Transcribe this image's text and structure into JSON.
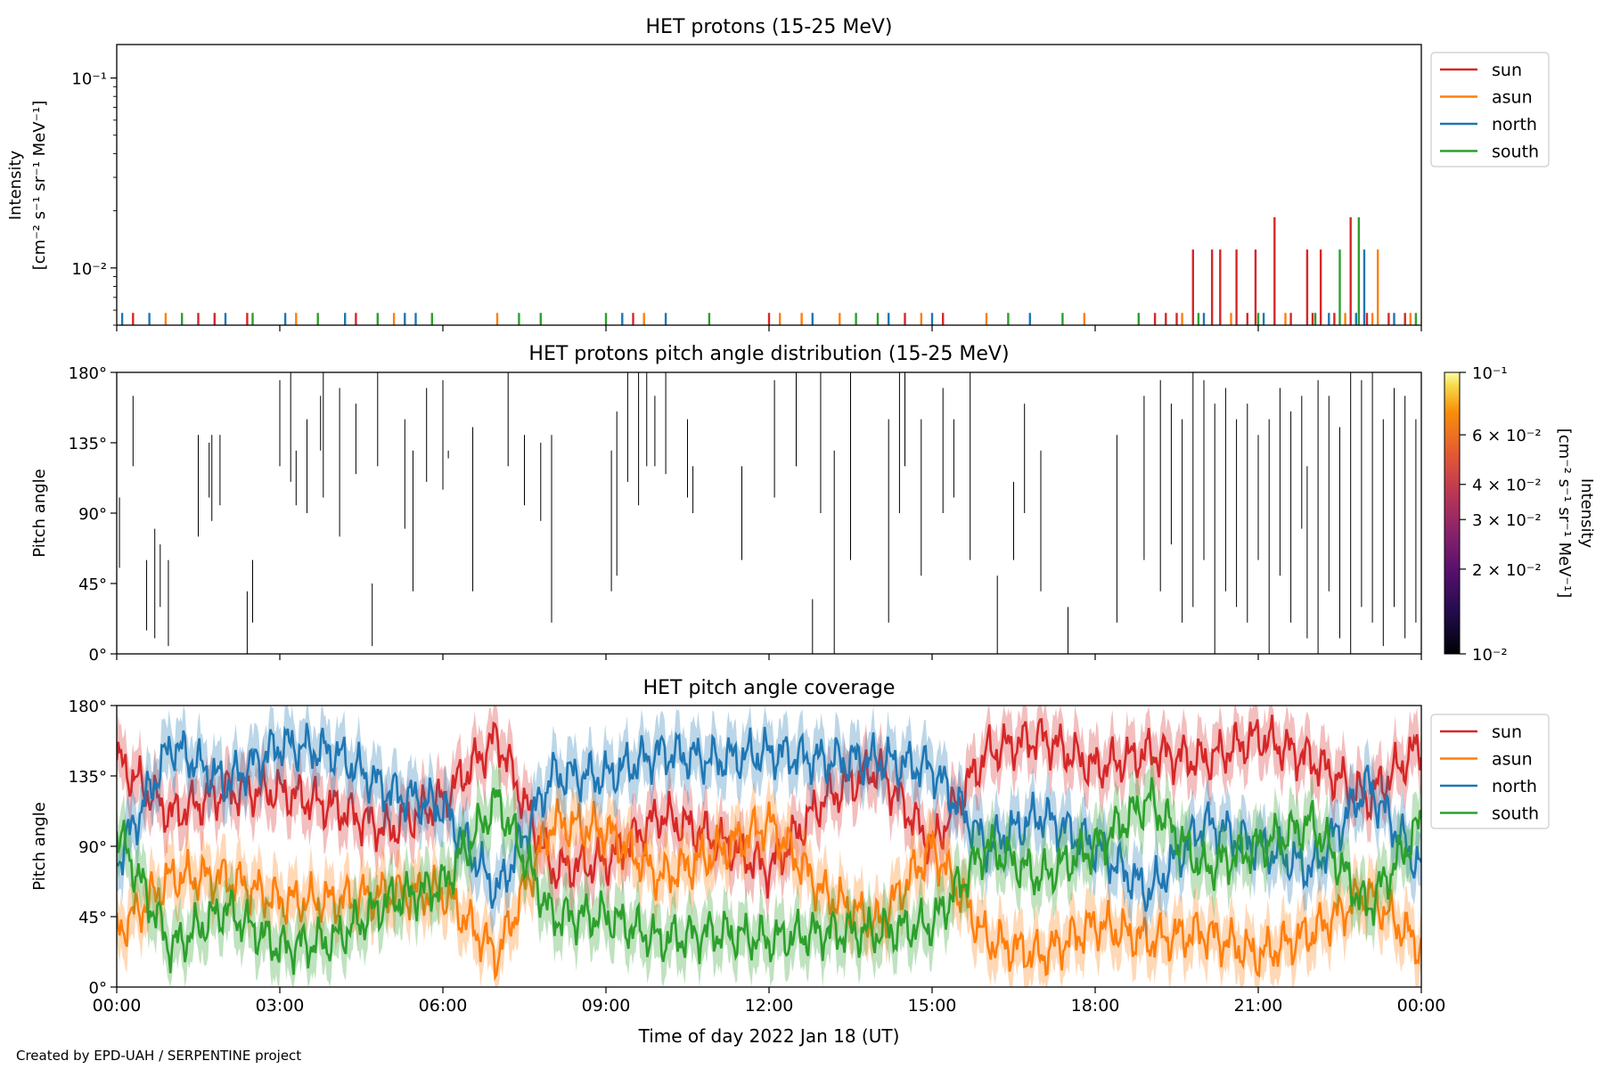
{
  "credit": "Created by EPD-UAH / SERPENTINE project",
  "xaxis": {
    "label": "Time of day 2022 Jan 18 (UT)",
    "ticks": [
      "00:00",
      "03:00",
      "06:00",
      "09:00",
      "12:00",
      "15:00",
      "18:00",
      "21:00",
      "00:00"
    ],
    "range_hours": [
      0,
      24
    ]
  },
  "colors": {
    "sun": "#d62728",
    "asun": "#ff7f0e",
    "north": "#1f77b4",
    "south": "#2ca02c"
  },
  "chart_data": [
    {
      "type": "line",
      "title": "HET protons (15-25 MeV)",
      "ylabel_line1": "Intensity",
      "ylabel_line2": "[cm⁻² s⁻¹ sr⁻¹ MeV⁻¹]",
      "yscale": "log",
      "ylim": [
        0.005,
        0.15
      ],
      "yticks": [
        {
          "value": 0.1,
          "label": "10⁻¹"
        },
        {
          "value": 0.01,
          "label": "10⁻²"
        }
      ],
      "baseline": 0.005,
      "legend": {
        "placement": "outside-right",
        "entries": [
          "sun",
          "asun",
          "north",
          "south"
        ]
      },
      "series": [
        {
          "name": "sun",
          "spikes": [
            [
              0.3,
              0.0058
            ],
            [
              1.5,
              0.0058
            ],
            [
              1.8,
              0.0058
            ],
            [
              2.4,
              0.0058
            ],
            [
              4.4,
              0.0058
            ],
            [
              9.5,
              0.0058
            ],
            [
              12.0,
              0.0058
            ],
            [
              14.5,
              0.0058
            ],
            [
              15.2,
              0.0058
            ],
            [
              19.1,
              0.0058
            ],
            [
              19.3,
              0.0058
            ],
            [
              19.5,
              0.0058
            ],
            [
              19.8,
              0.0125
            ],
            [
              20.15,
              0.0125
            ],
            [
              20.3,
              0.0125
            ],
            [
              20.6,
              0.0125
            ],
            [
              20.8,
              0.0058
            ],
            [
              20.95,
              0.0125
            ],
            [
              21.3,
              0.0185
            ],
            [
              21.6,
              0.0058
            ],
            [
              21.9,
              0.0125
            ],
            [
              22.0,
              0.0058
            ],
            [
              22.15,
              0.0125
            ],
            [
              22.4,
              0.0058
            ],
            [
              22.7,
              0.0185
            ],
            [
              23.0,
              0.0058
            ],
            [
              23.4,
              0.0058
            ],
            [
              23.7,
              0.0058
            ]
          ]
        },
        {
          "name": "asun",
          "spikes": [
            [
              0.9,
              0.0058
            ],
            [
              3.3,
              0.0058
            ],
            [
              5.1,
              0.0058
            ],
            [
              7.0,
              0.0058
            ],
            [
              9.7,
              0.0058
            ],
            [
              12.2,
              0.0058
            ],
            [
              12.6,
              0.0058
            ],
            [
              13.3,
              0.0058
            ],
            [
              14.8,
              0.0058
            ],
            [
              16.0,
              0.0058
            ],
            [
              17.8,
              0.0058
            ],
            [
              19.6,
              0.0058
            ],
            [
              20.5,
              0.0058
            ],
            [
              21.5,
              0.0058
            ],
            [
              22.6,
              0.0058
            ],
            [
              23.1,
              0.0058
            ],
            [
              23.2,
              0.0125
            ],
            [
              23.8,
              0.0058
            ]
          ]
        },
        {
          "name": "north",
          "spikes": [
            [
              0.1,
              0.0058
            ],
            [
              0.6,
              0.0058
            ],
            [
              2.0,
              0.0058
            ],
            [
              3.1,
              0.0058
            ],
            [
              4.2,
              0.0058
            ],
            [
              5.3,
              0.0058
            ],
            [
              5.5,
              0.0058
            ],
            [
              9.3,
              0.0058
            ],
            [
              10.1,
              0.0058
            ],
            [
              12.8,
              0.0058
            ],
            [
              14.2,
              0.0058
            ],
            [
              15.0,
              0.0058
            ],
            [
              16.8,
              0.0058
            ],
            [
              20.0,
              0.0058
            ],
            [
              21.1,
              0.0058
            ],
            [
              22.3,
              0.0058
            ],
            [
              22.8,
              0.0058
            ],
            [
              22.95,
              0.0125
            ],
            [
              23.5,
              0.0058
            ]
          ]
        },
        {
          "name": "south",
          "spikes": [
            [
              1.2,
              0.0058
            ],
            [
              2.5,
              0.0058
            ],
            [
              3.7,
              0.0058
            ],
            [
              4.8,
              0.0058
            ],
            [
              5.8,
              0.0058
            ],
            [
              7.4,
              0.0058
            ],
            [
              7.8,
              0.0058
            ],
            [
              9.0,
              0.0058
            ],
            [
              10.9,
              0.0058
            ],
            [
              13.6,
              0.0058
            ],
            [
              14.0,
              0.0058
            ],
            [
              16.4,
              0.0058
            ],
            [
              17.4,
              0.0058
            ],
            [
              18.8,
              0.0058
            ],
            [
              19.9,
              0.0058
            ],
            [
              21.0,
              0.0058
            ],
            [
              22.05,
              0.0058
            ],
            [
              22.5,
              0.0125
            ],
            [
              22.85,
              0.0185
            ],
            [
              23.9,
              0.0058
            ]
          ]
        }
      ]
    },
    {
      "type": "heatmap",
      "title": "HET protons pitch angle distribution (15-25 MeV)",
      "ylabel": "Pitch angle",
      "ylim": [
        0,
        180
      ],
      "yticks": [
        "0°",
        "45°",
        "90°",
        "135°",
        "180°"
      ],
      "colorbar": {
        "label_line1": "Intensity",
        "label_line2": "[cm⁻² s⁻¹ sr⁻¹ MeV⁻¹]",
        "scale": "log",
        "range": [
          0.01,
          0.1
        ],
        "ticks": [
          {
            "value": 0.1,
            "label": "10⁻¹"
          },
          {
            "value": 0.06,
            "label": "6 × 10⁻²"
          },
          {
            "value": 0.04,
            "label": "4 × 10⁻²"
          },
          {
            "value": 0.03,
            "label": "3 × 10⁻²"
          },
          {
            "value": 0.02,
            "label": "2 × 10⁻²"
          },
          {
            "value": 0.01,
            "label": "10⁻²"
          }
        ]
      },
      "segments": [
        [
          0.05,
          55,
          100
        ],
        [
          0.3,
          120,
          165
        ],
        [
          0.55,
          15,
          60
        ],
        [
          0.7,
          10,
          80
        ],
        [
          0.8,
          30,
          70
        ],
        [
          0.95,
          5,
          60
        ],
        [
          1.5,
          75,
          140
        ],
        [
          1.7,
          100,
          135
        ],
        [
          1.75,
          85,
          140
        ],
        [
          1.9,
          95,
          140
        ],
        [
          2.4,
          0,
          40
        ],
        [
          2.5,
          20,
          60
        ],
        [
          3.0,
          120,
          175
        ],
        [
          3.2,
          110,
          180
        ],
        [
          3.3,
          95,
          130
        ],
        [
          3.5,
          90,
          150
        ],
        [
          3.75,
          130,
          165
        ],
        [
          3.8,
          100,
          180
        ],
        [
          4.1,
          75,
          170
        ],
        [
          4.4,
          115,
          160
        ],
        [
          4.7,
          5,
          45
        ],
        [
          4.8,
          120,
          180
        ],
        [
          5.3,
          80,
          150
        ],
        [
          5.45,
          40,
          130
        ],
        [
          5.7,
          110,
          170
        ],
        [
          6.0,
          105,
          175
        ],
        [
          6.1,
          125,
          130
        ],
        [
          6.55,
          40,
          145
        ],
        [
          7.2,
          120,
          180
        ],
        [
          7.5,
          95,
          140
        ],
        [
          7.8,
          85,
          135
        ],
        [
          8.0,
          20,
          140
        ],
        [
          9.1,
          40,
          130
        ],
        [
          9.2,
          50,
          155
        ],
        [
          9.4,
          110,
          180
        ],
        [
          9.6,
          95,
          180
        ],
        [
          9.75,
          120,
          180
        ],
        [
          9.9,
          120,
          165
        ],
        [
          10.1,
          115,
          180
        ],
        [
          10.5,
          100,
          150
        ],
        [
          10.6,
          90,
          120
        ],
        [
          11.5,
          60,
          120
        ],
        [
          12.1,
          100,
          175
        ],
        [
          12.5,
          120,
          180
        ],
        [
          12.8,
          0,
          35
        ],
        [
          12.95,
          90,
          180
        ],
        [
          13.2,
          0,
          130
        ],
        [
          13.5,
          60,
          180
        ],
        [
          14.2,
          20,
          150
        ],
        [
          14.4,
          90,
          180
        ],
        [
          14.5,
          120,
          180
        ],
        [
          14.8,
          50,
          150
        ],
        [
          15.2,
          90,
          170
        ],
        [
          15.4,
          100,
          150
        ],
        [
          15.7,
          60,
          180
        ],
        [
          16.2,
          0,
          50
        ],
        [
          16.5,
          60,
          110
        ],
        [
          16.7,
          90,
          160
        ],
        [
          17.0,
          40,
          130
        ],
        [
          17.5,
          0,
          30
        ],
        [
          18.4,
          20,
          140
        ],
        [
          18.9,
          60,
          165
        ],
        [
          19.2,
          40,
          175
        ],
        [
          19.4,
          70,
          160
        ],
        [
          19.6,
          20,
          150
        ],
        [
          19.8,
          30,
          180
        ],
        [
          20.0,
          60,
          175
        ],
        [
          20.2,
          0,
          160
        ],
        [
          20.4,
          40,
          170
        ],
        [
          20.6,
          30,
          150
        ],
        [
          20.8,
          20,
          160
        ],
        [
          21.0,
          60,
          140
        ],
        [
          21.2,
          0,
          150
        ],
        [
          21.4,
          50,
          170
        ],
        [
          21.6,
          20,
          155
        ],
        [
          21.8,
          80,
          165
        ],
        [
          21.9,
          10,
          120
        ],
        [
          22.1,
          0,
          175
        ],
        [
          22.3,
          40,
          165
        ],
        [
          22.5,
          10,
          145
        ],
        [
          22.7,
          0,
          180
        ],
        [
          22.9,
          30,
          175
        ],
        [
          23.1,
          20,
          180
        ],
        [
          23.3,
          5,
          150
        ],
        [
          23.5,
          30,
          170
        ],
        [
          23.7,
          10,
          165
        ],
        [
          23.9,
          20,
          150
        ]
      ]
    },
    {
      "type": "area",
      "title": "HET pitch angle coverage",
      "ylabel": "Pitch angle",
      "ylim": [
        0,
        180
      ],
      "yticks": [
        "0°",
        "45°",
        "90°",
        "135°",
        "180°"
      ],
      "legend": {
        "placement": "outside-right",
        "entries": [
          "sun",
          "asun",
          "north",
          "south"
        ]
      },
      "band_halfwidth_deg": 17,
      "x_hours": [
        0,
        1,
        2,
        3,
        4,
        5,
        6,
        7,
        8,
        9,
        10,
        11,
        12,
        13,
        14,
        15,
        16,
        17,
        18,
        19,
        20,
        21,
        22,
        23,
        24
      ],
      "series": [
        {
          "name": "sun",
          "values": [
            145,
            110,
            125,
            125,
            115,
            100,
            120,
            160,
            75,
            80,
            110,
            95,
            75,
            120,
            140,
            90,
            150,
            160,
            140,
            150,
            145,
            160,
            145,
            120,
            155
          ]
        },
        {
          "name": "asun",
          "values": [
            35,
            70,
            70,
            55,
            55,
            60,
            60,
            20,
            105,
            100,
            70,
            85,
            105,
            60,
            40,
            90,
            30,
            20,
            40,
            30,
            35,
            20,
            35,
            60,
            25
          ]
        },
        {
          "name": "north",
          "values": [
            80,
            155,
            130,
            155,
            150,
            125,
            115,
            60,
            135,
            135,
            150,
            145,
            150,
            145,
            145,
            140,
            90,
            110,
            90,
            60,
            105,
            90,
            75,
            130,
            75
          ]
        },
        {
          "name": "south",
          "values": [
            100,
            25,
            50,
            25,
            30,
            55,
            65,
            120,
            45,
            45,
            30,
            35,
            30,
            35,
            35,
            40,
            90,
            70,
            90,
            120,
            75,
            90,
            105,
            50,
            105
          ]
        }
      ]
    }
  ]
}
